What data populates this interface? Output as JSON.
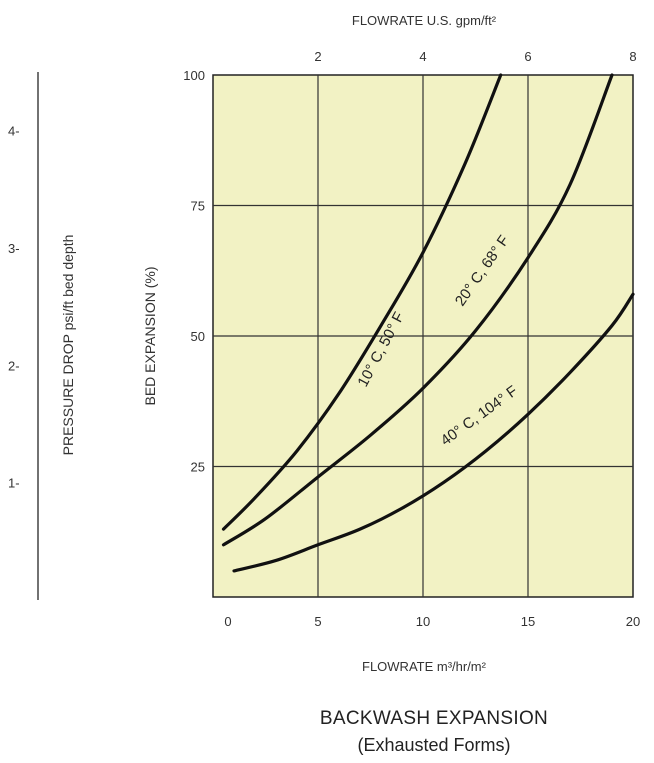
{
  "chart_data": {
    "type": "line",
    "title": "BACKWASH EXPANSION",
    "subtitle": "(Exhausted Forms)",
    "xlabel_bottom": "FLOWRATE m³/hr/m²",
    "xlabel_top": "FLOWRATE U.S. gpm/ft²",
    "ylabel": "BED EXPANSION (%)",
    "ylabel_left": "PRESSURE DROP psi/ft bed depth",
    "x_bottom_ticks": [
      "0",
      "5",
      "10",
      "15",
      "20"
    ],
    "x_top_ticks": [
      "2",
      "4",
      "6",
      "8"
    ],
    "y_ticks": [
      "25",
      "50",
      "75",
      "100"
    ],
    "pressure_ticks": [
      "1-",
      "2-",
      "3-",
      "4-"
    ],
    "xlim": [
      0,
      20
    ],
    "ylim": [
      0,
      100
    ],
    "x_top_range_gpm": [
      0,
      8
    ],
    "pressure_range_psi": [
      0,
      4.5
    ],
    "grid": true,
    "plot_background": "#f2f2c4",
    "line_color": "#111111",
    "series": [
      {
        "name": "10° C, 50° F",
        "x": [
          0.5,
          2,
          4,
          6,
          8,
          10,
          12,
          13.7
        ],
        "y": [
          13,
          19,
          28,
          39,
          52,
          66,
          83,
          100
        ]
      },
      {
        "name": "20° C, 68° F",
        "x": [
          0.5,
          2.5,
          5,
          7.5,
          10,
          12.5,
          15,
          17,
          19
        ],
        "y": [
          10,
          15,
          23,
          31,
          40,
          51,
          65,
          79,
          100
        ]
      },
      {
        "name": "40° C, 104° F",
        "x": [
          1,
          3,
          5,
          7,
          9,
          11,
          13,
          15,
          17,
          19,
          20
        ],
        "y": [
          5,
          7,
          10,
          13,
          17,
          22,
          28,
          35,
          43,
          52,
          58
        ]
      }
    ]
  }
}
